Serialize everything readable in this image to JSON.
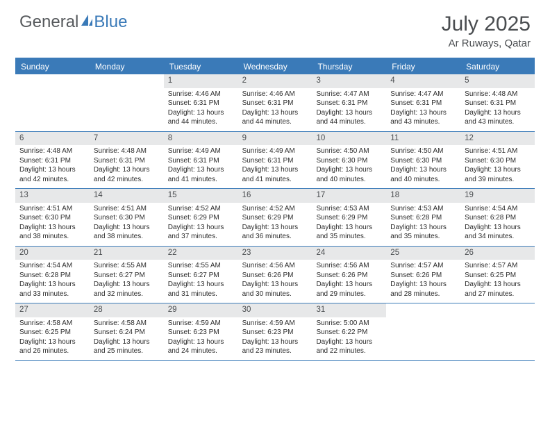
{
  "brand": {
    "part1": "General",
    "part2": "Blue"
  },
  "title": "July 2025",
  "location": "Ar Ruways, Qatar",
  "colors": {
    "accent": "#3a7ab8",
    "header_text": "#4a4d50",
    "daynum_bg": "#e7e8e9",
    "body_text": "#2b2b2b",
    "bg": "#ffffff"
  },
  "weekdays": [
    "Sunday",
    "Monday",
    "Tuesday",
    "Wednesday",
    "Thursday",
    "Friday",
    "Saturday"
  ],
  "weeks": [
    [
      null,
      null,
      {
        "n": "1",
        "sr": "4:46 AM",
        "ss": "6:31 PM",
        "dl": "13 hours and 44 minutes."
      },
      {
        "n": "2",
        "sr": "4:46 AM",
        "ss": "6:31 PM",
        "dl": "13 hours and 44 minutes."
      },
      {
        "n": "3",
        "sr": "4:47 AM",
        "ss": "6:31 PM",
        "dl": "13 hours and 44 minutes."
      },
      {
        "n": "4",
        "sr": "4:47 AM",
        "ss": "6:31 PM",
        "dl": "13 hours and 43 minutes."
      },
      {
        "n": "5",
        "sr": "4:48 AM",
        "ss": "6:31 PM",
        "dl": "13 hours and 43 minutes."
      }
    ],
    [
      {
        "n": "6",
        "sr": "4:48 AM",
        "ss": "6:31 PM",
        "dl": "13 hours and 42 minutes."
      },
      {
        "n": "7",
        "sr": "4:48 AM",
        "ss": "6:31 PM",
        "dl": "13 hours and 42 minutes."
      },
      {
        "n": "8",
        "sr": "4:49 AM",
        "ss": "6:31 PM",
        "dl": "13 hours and 41 minutes."
      },
      {
        "n": "9",
        "sr": "4:49 AM",
        "ss": "6:31 PM",
        "dl": "13 hours and 41 minutes."
      },
      {
        "n": "10",
        "sr": "4:50 AM",
        "ss": "6:30 PM",
        "dl": "13 hours and 40 minutes."
      },
      {
        "n": "11",
        "sr": "4:50 AM",
        "ss": "6:30 PM",
        "dl": "13 hours and 40 minutes."
      },
      {
        "n": "12",
        "sr": "4:51 AM",
        "ss": "6:30 PM",
        "dl": "13 hours and 39 minutes."
      }
    ],
    [
      {
        "n": "13",
        "sr": "4:51 AM",
        "ss": "6:30 PM",
        "dl": "13 hours and 38 minutes."
      },
      {
        "n": "14",
        "sr": "4:51 AM",
        "ss": "6:30 PM",
        "dl": "13 hours and 38 minutes."
      },
      {
        "n": "15",
        "sr": "4:52 AM",
        "ss": "6:29 PM",
        "dl": "13 hours and 37 minutes."
      },
      {
        "n": "16",
        "sr": "4:52 AM",
        "ss": "6:29 PM",
        "dl": "13 hours and 36 minutes."
      },
      {
        "n": "17",
        "sr": "4:53 AM",
        "ss": "6:29 PM",
        "dl": "13 hours and 35 minutes."
      },
      {
        "n": "18",
        "sr": "4:53 AM",
        "ss": "6:28 PM",
        "dl": "13 hours and 35 minutes."
      },
      {
        "n": "19",
        "sr": "4:54 AM",
        "ss": "6:28 PM",
        "dl": "13 hours and 34 minutes."
      }
    ],
    [
      {
        "n": "20",
        "sr": "4:54 AM",
        "ss": "6:28 PM",
        "dl": "13 hours and 33 minutes."
      },
      {
        "n": "21",
        "sr": "4:55 AM",
        "ss": "6:27 PM",
        "dl": "13 hours and 32 minutes."
      },
      {
        "n": "22",
        "sr": "4:55 AM",
        "ss": "6:27 PM",
        "dl": "13 hours and 31 minutes."
      },
      {
        "n": "23",
        "sr": "4:56 AM",
        "ss": "6:26 PM",
        "dl": "13 hours and 30 minutes."
      },
      {
        "n": "24",
        "sr": "4:56 AM",
        "ss": "6:26 PM",
        "dl": "13 hours and 29 minutes."
      },
      {
        "n": "25",
        "sr": "4:57 AM",
        "ss": "6:26 PM",
        "dl": "13 hours and 28 minutes."
      },
      {
        "n": "26",
        "sr": "4:57 AM",
        "ss": "6:25 PM",
        "dl": "13 hours and 27 minutes."
      }
    ],
    [
      {
        "n": "27",
        "sr": "4:58 AM",
        "ss": "6:25 PM",
        "dl": "13 hours and 26 minutes."
      },
      {
        "n": "28",
        "sr": "4:58 AM",
        "ss": "6:24 PM",
        "dl": "13 hours and 25 minutes."
      },
      {
        "n": "29",
        "sr": "4:59 AM",
        "ss": "6:23 PM",
        "dl": "13 hours and 24 minutes."
      },
      {
        "n": "30",
        "sr": "4:59 AM",
        "ss": "6:23 PM",
        "dl": "13 hours and 23 minutes."
      },
      {
        "n": "31",
        "sr": "5:00 AM",
        "ss": "6:22 PM",
        "dl": "13 hours and 22 minutes."
      },
      null,
      null
    ]
  ],
  "labels": {
    "sunrise": "Sunrise:",
    "sunset": "Sunset:",
    "daylight": "Daylight:"
  }
}
